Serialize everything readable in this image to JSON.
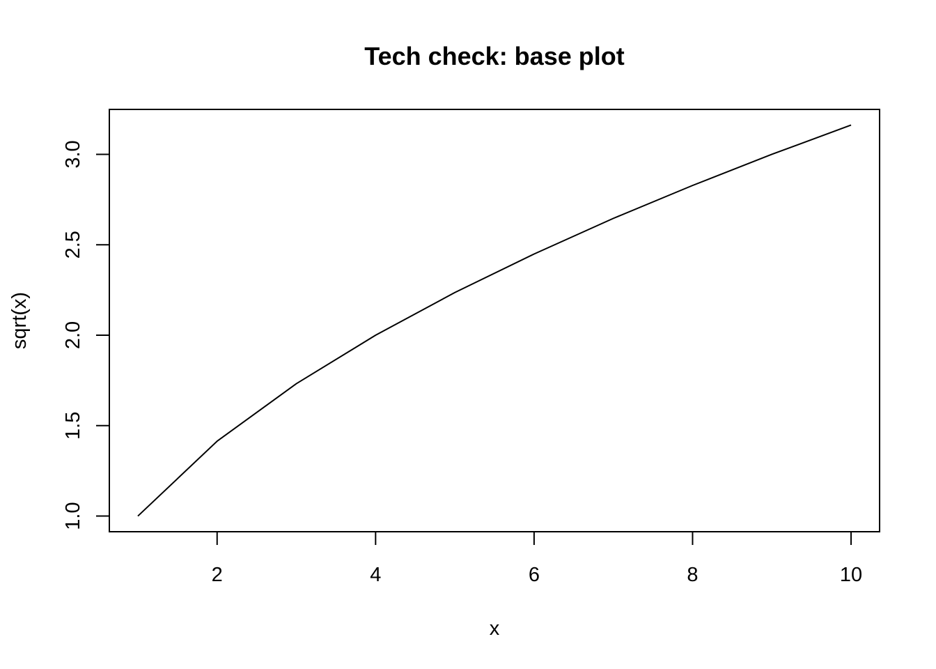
{
  "chart_data": {
    "type": "line",
    "title": "Tech check: base plot",
    "xlabel": "x",
    "ylabel": "sqrt(x)",
    "x": [
      1,
      2,
      3,
      4,
      5,
      6,
      7,
      8,
      9,
      10
    ],
    "series": [
      {
        "values": [
          1.0,
          1.414,
          1.732,
          2.0,
          2.236,
          2.449,
          2.646,
          2.828,
          3.0,
          3.162
        ]
      }
    ],
    "xlim": [
      0.64,
      10.36
    ],
    "ylim": [
      0.9135,
      3.2485
    ],
    "xticks": [
      2,
      4,
      6,
      8,
      10
    ],
    "xtick_labels": [
      "2",
      "4",
      "6",
      "8",
      "10"
    ],
    "yticks": [
      1.0,
      1.5,
      2.0,
      2.5,
      3.0
    ],
    "ytick_labels": [
      "1.0",
      "1.5",
      "2.0",
      "2.5",
      "3.0"
    ],
    "grid": false,
    "legend": "none",
    "colors": {
      "line": "#000000",
      "frame": "#000000",
      "background": "#ffffff"
    }
  }
}
